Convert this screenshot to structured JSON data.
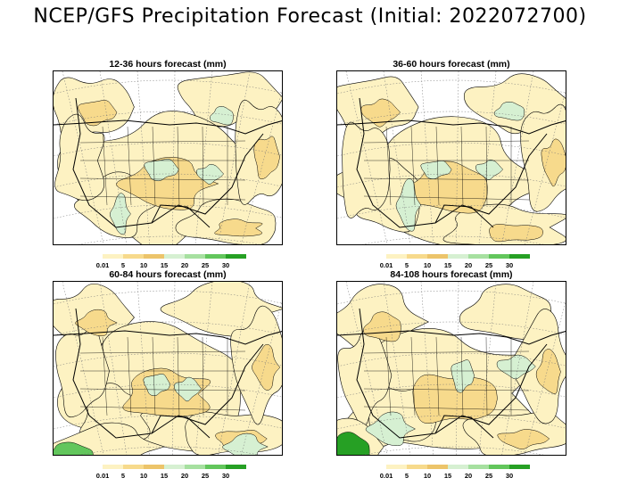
{
  "title": "NCEP/GFS Precipitation Forecast (Initial: 2022072700)",
  "legend": {
    "labels": [
      "0.01",
      "5",
      "10",
      "15",
      "20",
      "25",
      "30"
    ],
    "colors": [
      "#fdf2c2",
      "#f7da8c",
      "#ecc46a",
      "#d6f0d2",
      "#a6e0a0",
      "#62c65c",
      "#26a024"
    ]
  },
  "panels": [
    {
      "title": "12-36 hours forecast (mm)"
    },
    {
      "title": "36-60 hours forecast (mm)"
    },
    {
      "title": "60-84 hours forecast (mm)"
    },
    {
      "title": "84-108 hours forecast (mm)"
    }
  ]
}
